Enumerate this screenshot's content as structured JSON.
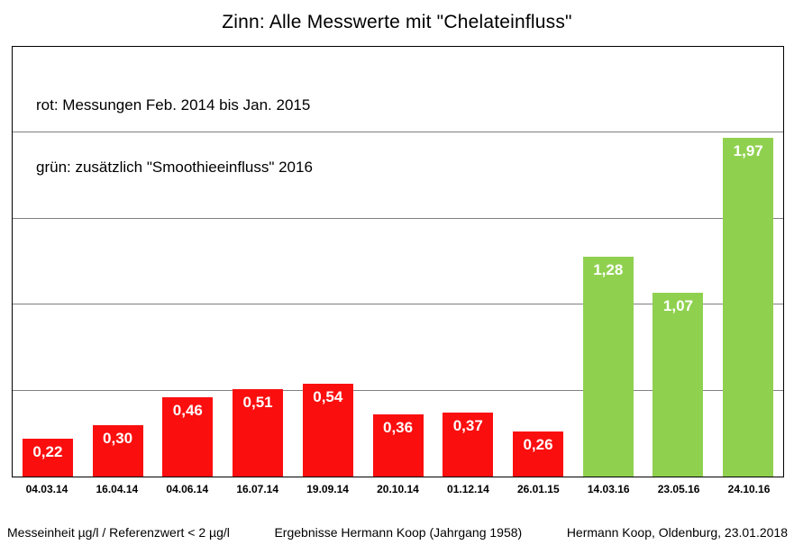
{
  "title": "Zinn: Alle Messwerte mit \"Chelateinfluss\"",
  "legend": {
    "line1": "rot: Messungen Feb. 2014 bis Jan. 2015",
    "line2": "grün: zusätzlich \"Smoothieeinfluss\" 2016"
  },
  "colors": {
    "red": "#FB0E0E",
    "green": "#8FD14F",
    "gridline": "#808080",
    "frame": "#000000",
    "value_label_text": "#FFFFFF"
  },
  "chart_data": {
    "type": "bar",
    "title": "Zinn: Alle Messwerte mit \"Chelateinfluss\"",
    "xlabel": "",
    "ylabel": "",
    "ylim": [
      0,
      2.5
    ],
    "grid": true,
    "gridline_values": [
      0.5,
      1.0,
      1.5,
      2.0
    ],
    "y_axis_tick_labels_visible": false,
    "legend_position": "top-left-inside",
    "categories": [
      "04.03.14",
      "16.04.14",
      "04.06.14",
      "16.07.14",
      "19.09.14",
      "20.10.14",
      "01.12.14",
      "26.01.15",
      "14.03.16",
      "23.05.16",
      "24.10.16"
    ],
    "values": [
      0.22,
      0.3,
      0.46,
      0.51,
      0.54,
      0.36,
      0.37,
      0.26,
      1.28,
      1.07,
      1.97
    ],
    "value_labels": [
      "0,22",
      "0,30",
      "0,46",
      "0,51",
      "0,54",
      "0,36",
      "0,37",
      "0,26",
      "1,28",
      "1,07",
      "1,97"
    ],
    "point_series_keys": [
      "red",
      "red",
      "red",
      "red",
      "red",
      "red",
      "red",
      "red",
      "green",
      "green",
      "green"
    ],
    "series": [
      {
        "key": "red",
        "name": "Messungen Feb. 2014 bis Jan. 2015",
        "color": "#FB0E0E"
      },
      {
        "key": "green",
        "name": "zusätzlich \"Smoothieeinfluss\" 2016",
        "color": "#8FD14F"
      }
    ]
  },
  "footer": {
    "left": "Messeinheit µg/l / Referenzwert < 2 µg/l",
    "center": "Ergebnisse Hermann Koop (Jahrgang 1958)",
    "right": "Hermann Koop, Oldenburg, 23.01.2018"
  }
}
